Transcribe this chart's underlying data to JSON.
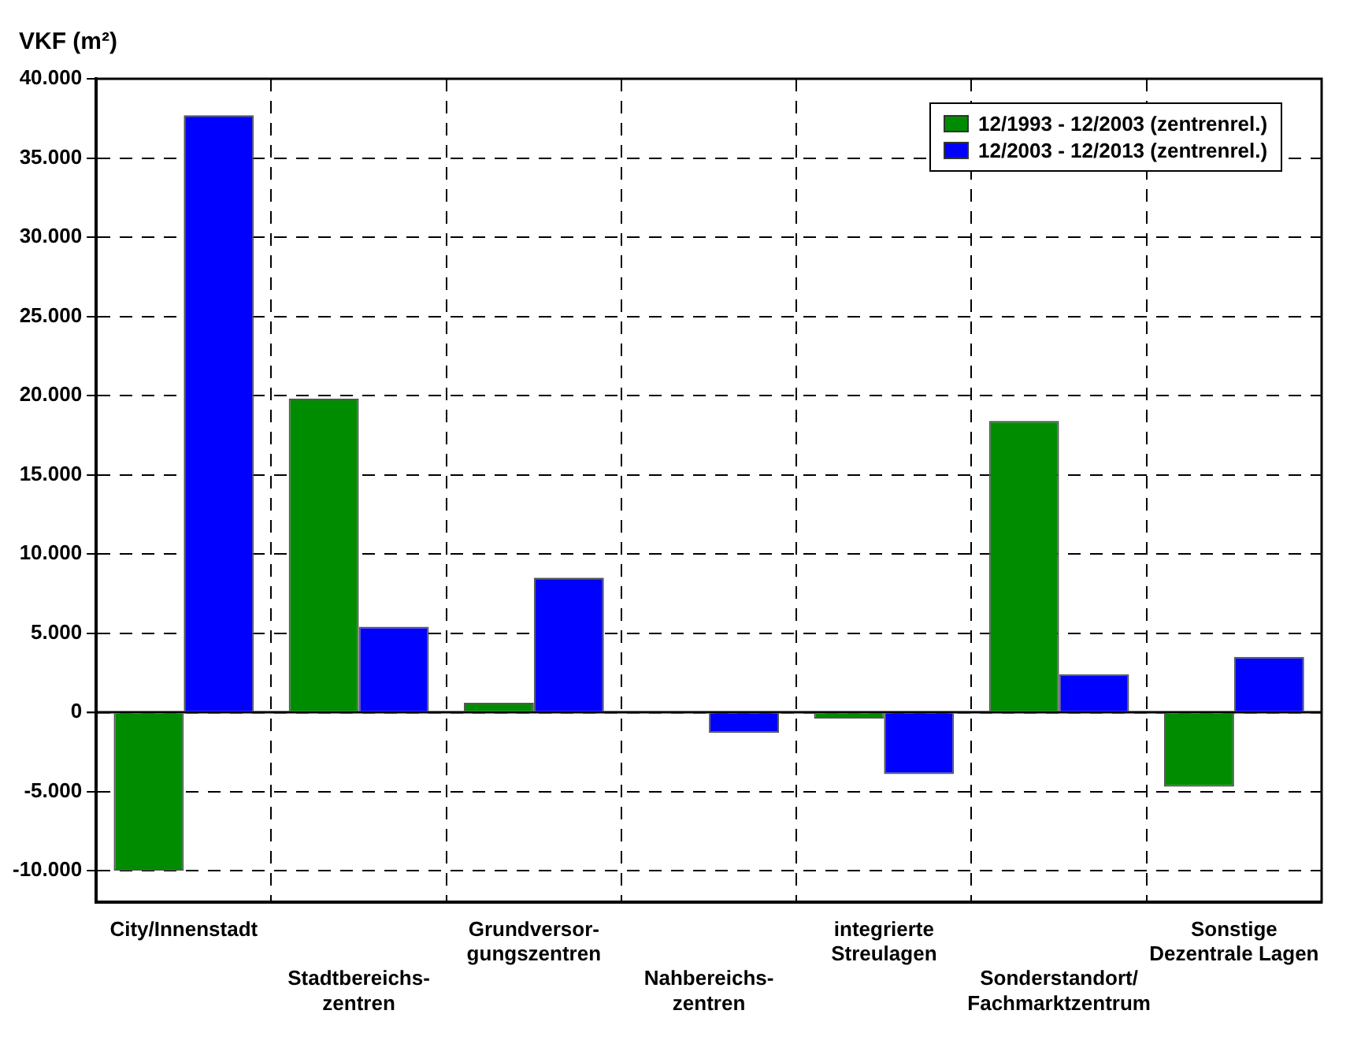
{
  "chart_data": {
    "type": "bar",
    "ylabel": "VKF (m²)",
    "categories": [
      "City/Innenstadt",
      "Stadtbereichs-\nzentren",
      "Grundversor-\ngungszentren",
      "Nahbereichs-\nzentren",
      "integrierte\nStreulagen",
      "Sonderstandort/\nFachmarktzentrum",
      "Sonstige\nDezentrale Lagen"
    ],
    "series": [
      {
        "name": "12/1993 - 12/2003 (zentrenrel.)",
        "color": "#008c00",
        "values": [
          -10000,
          19800,
          600,
          0,
          -400,
          18400,
          -4700
        ]
      },
      {
        "name": "12/2003 - 12/2013 (zentrenrel.)",
        "color": "#0000ff",
        "values": [
          37700,
          5400,
          8500,
          -1300,
          -3900,
          2400,
          3500
        ]
      }
    ],
    "ylim": [
      -12000,
      40000
    ],
    "yticks": [
      {
        "value": -10000,
        "label": "-10.000"
      },
      {
        "value": -5000,
        "label": "-5.000"
      },
      {
        "value": 0,
        "label": "0"
      },
      {
        "value": 5000,
        "label": "5.000"
      },
      {
        "value": 10000,
        "label": "10.000"
      },
      {
        "value": 15000,
        "label": "15.000"
      },
      {
        "value": 20000,
        "label": "20.000"
      },
      {
        "value": 25000,
        "label": "25.000"
      },
      {
        "value": 30000,
        "label": "30.000"
      },
      {
        "value": 35000,
        "label": "35.000"
      },
      {
        "value": 40000,
        "label": "40.000"
      }
    ],
    "grid": true,
    "legend": "top right",
    "ref_lines": [
      {
        "axis": "y",
        "value": 0,
        "color": "#000000"
      }
    ]
  }
}
